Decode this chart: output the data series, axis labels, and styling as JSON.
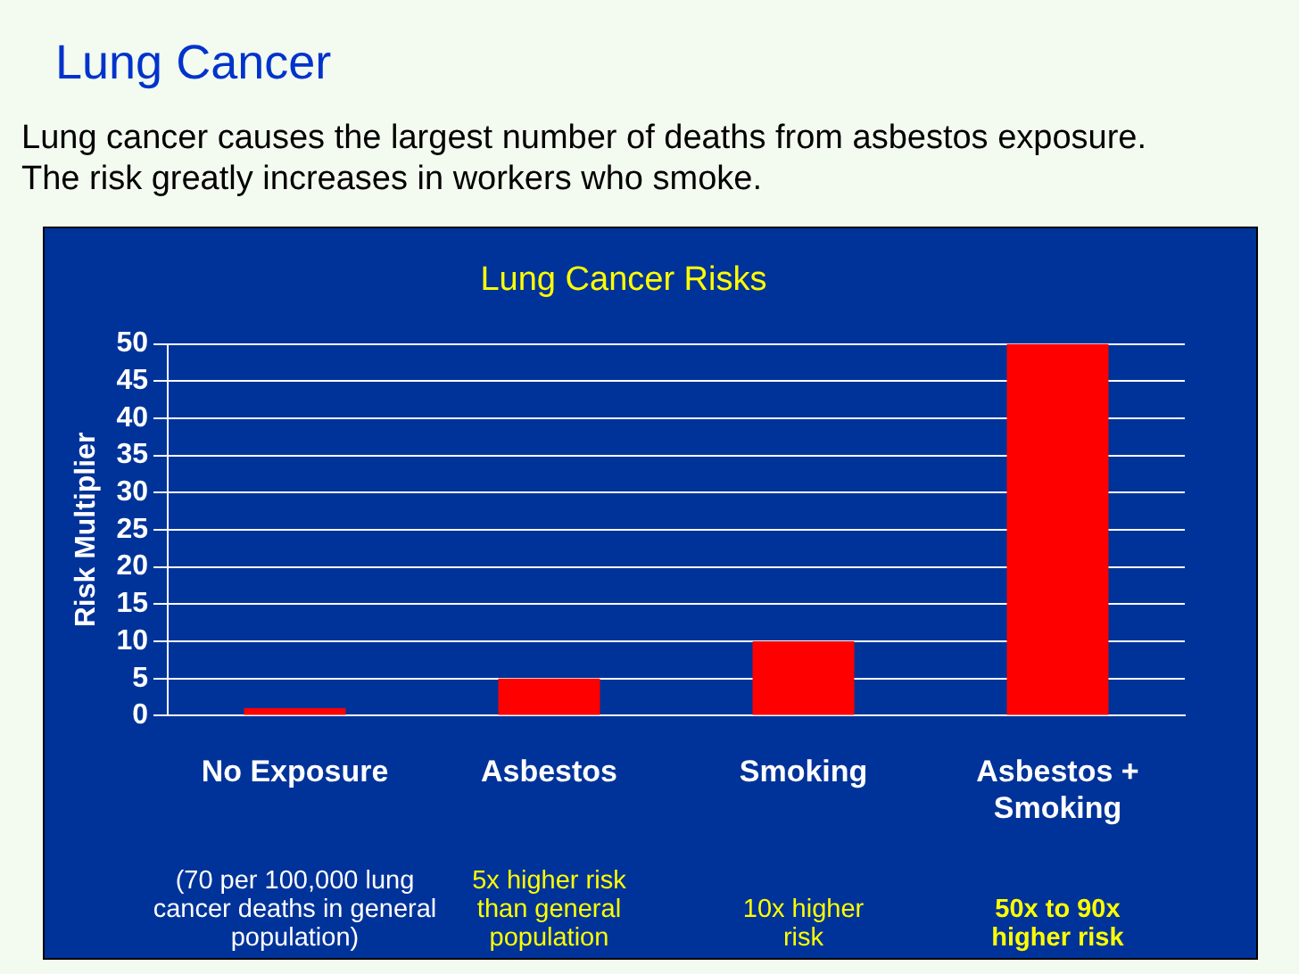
{
  "chart_data": {
    "type": "bar",
    "title": "Lung Cancer",
    "subtitle": "Lung cancer causes the largest number of deaths from asbestos exposure. The risk greatly increases in workers who smoke.",
    "categories": [
      "No Exposure",
      "Asbestos",
      "Smoking",
      "Asbestos + Smoking"
    ],
    "values": [
      1,
      5,
      10,
      50
    ],
    "color": "#ff0000",
    "ylabel": "Risk Multiplier",
    "ylim": [
      0,
      50
    ],
    "yticks": [
      0,
      5,
      10,
      15,
      20,
      25,
      30,
      35,
      40,
      45,
      50
    ],
    "grid": "y",
    "legend": false,
    "annotations": [
      "Lung Cancer Risks",
      "(70 per 100,000 lung cancer deaths in general population)",
      "5x higher risk than general population",
      "10x higher risk",
      "50x to 90x higher risk"
    ]
  }
}
